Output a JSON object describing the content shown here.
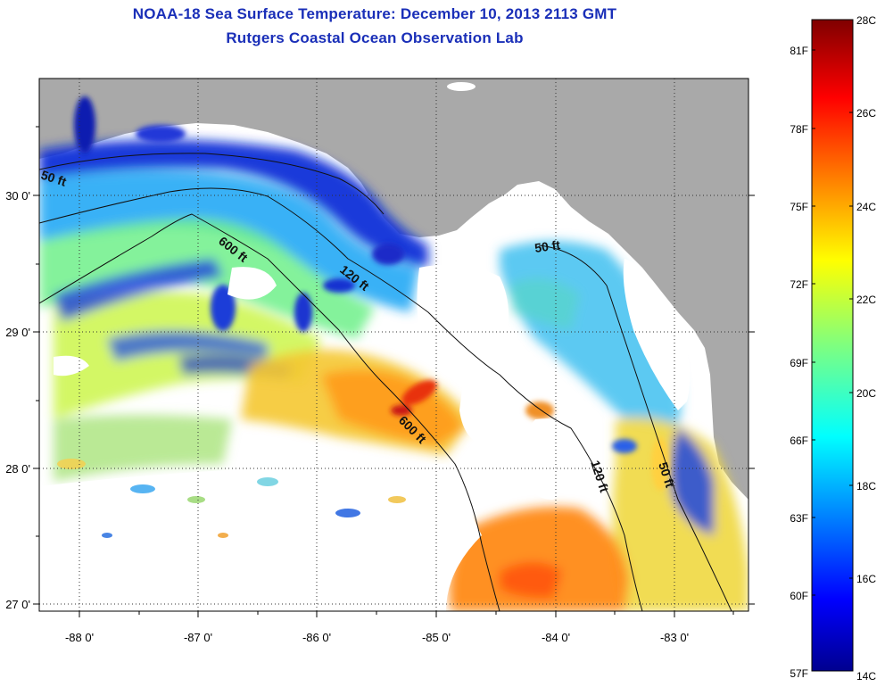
{
  "title": {
    "line1": "NOAA-18 Sea Surface Temperature:  December 10, 2013 2113 GMT",
    "line2": "Rutgers Coastal Ocean Observation Lab"
  },
  "axes": {
    "x_ticks": [
      "-88 0'",
      "-87 0'",
      "-86 0'",
      "-85 0'",
      "-84 0'",
      "-83 0'"
    ],
    "y_ticks": [
      "30 0'",
      "29 0'",
      "28 0'",
      "27 0'"
    ]
  },
  "contour_labels": [
    "50 ft",
    "600 ft",
    "120 ft",
    "50 ft",
    "600 ft",
    "120 ft",
    "50 ft"
  ],
  "colorbar": {
    "celsius": [
      "28C",
      "26C",
      "24C",
      "22C",
      "20C",
      "18C",
      "16C",
      "14C"
    ],
    "fahrenheit": [
      "81F",
      "78F",
      "75F",
      "72F",
      "69F",
      "66F",
      "63F",
      "60F",
      "57F"
    ]
  },
  "colors": {
    "title": "#1a2fb8",
    "land": "#a9a9a9",
    "ocean_no_data": "#ffffff"
  },
  "map_data": {
    "type": "sst-satellite-map",
    "lon_range": [
      -88.3,
      -82.5
    ],
    "lat_range": [
      27.0,
      30.9
    ],
    "temp_range_c": [
      14,
      28
    ]
  }
}
